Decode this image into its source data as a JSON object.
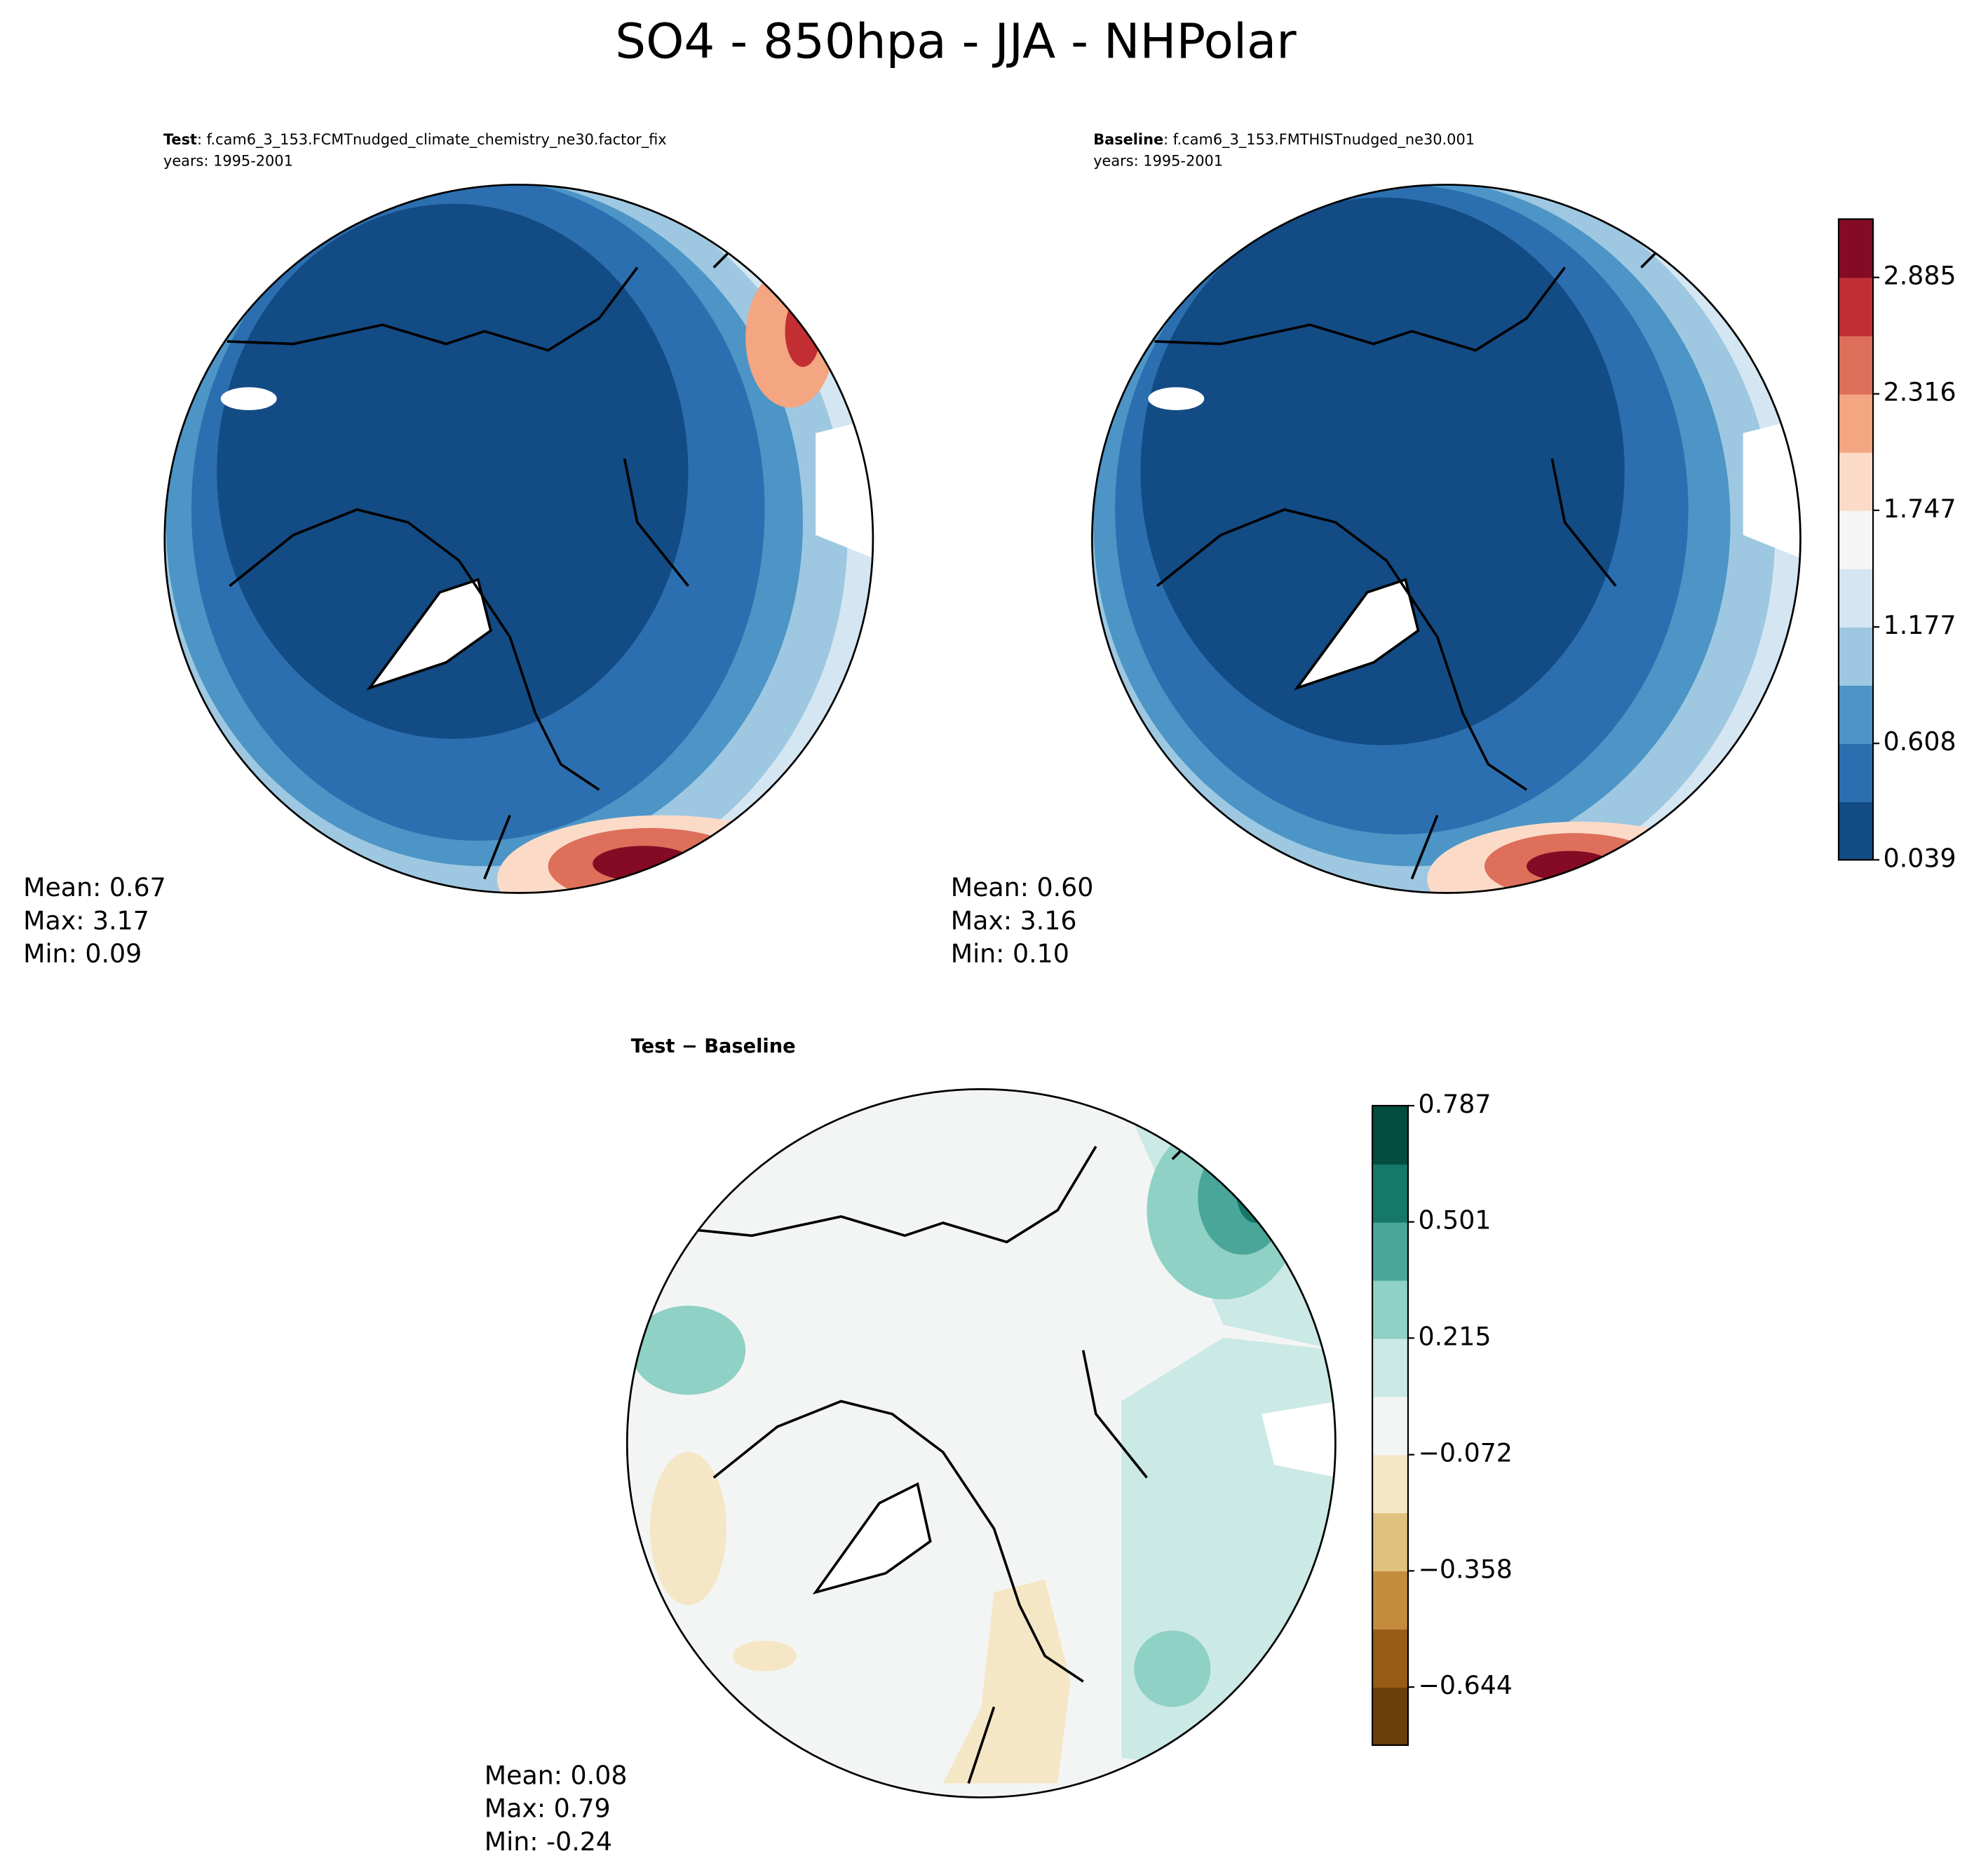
{
  "title": "SO4 - 850hpa - JJA - NHPolar",
  "panels": [
    {
      "name": "Test",
      "case": ": f.cam6_3_153.FCMTnudged_climate_chemistry_ne30.factor_fix",
      "years": "years: 1995-2001",
      "stats": [
        "Mean:  0.67",
        "Max:  3.17",
        "Min:  0.09"
      ]
    },
    {
      "name": "Baseline",
      "case": ": f.cam6_3_153.FMTHISTnudged_ne30.001",
      "years": "years: 1995-2001",
      "stats": [
        "Mean:  0.60",
        "Max:  3.16",
        "Min:  0.10"
      ]
    },
    {
      "name": "Test − Baseline",
      "stats": [
        "Mean:  0.08",
        "Max:  0.79",
        "Min: -0.24"
      ]
    }
  ],
  "colorbars": [
    {
      "lim": [
        0.039,
        3.17
      ],
      "ticks": [
        0.039,
        0.608,
        1.177,
        1.747,
        2.316,
        2.885
      ],
      "colors": [
        "#134b85",
        "#2c6fb0",
        "#4c95c6",
        "#9ec8e1",
        "#d4e6f1",
        "#f5f5f5",
        "#fbdbc8",
        "#f4a582",
        "#dd6f5b",
        "#c22f33",
        "#850b24"
      ]
    },
    {
      "lim": [
        -0.787,
        0.787
      ],
      "ticks": [
        {
          "value": -0.644,
          "label": "−0.644"
        },
        {
          "value": -0.358,
          "label": "−0.358"
        },
        {
          "value": -0.072,
          "label": "−0.072"
        },
        0.215,
        0.501,
        0.787
      ],
      "colors": [
        "#6b3f0b",
        "#995c16",
        "#c48c3e",
        "#dfc27d",
        "#f5e6c5",
        "#f3f5f4",
        "#cbe9e5",
        "#8fd1c4",
        "#4aa699",
        "#167868",
        "#024d40"
      ]
    }
  ]
}
